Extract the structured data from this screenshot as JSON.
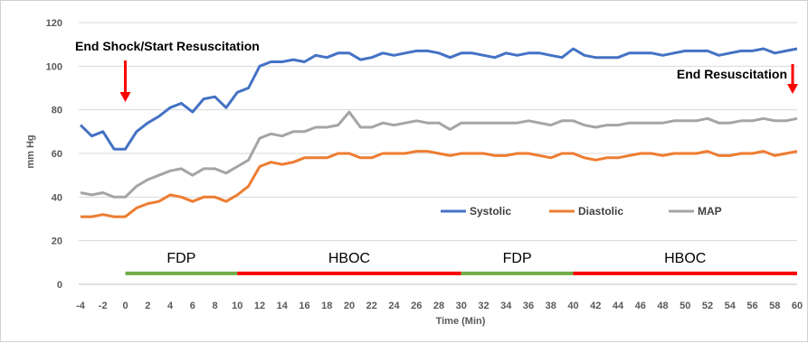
{
  "chart_data": {
    "type": "line",
    "title": "",
    "xlabel": "Time (Min)",
    "ylabel": "mm Hg",
    "xlim": [
      -4,
      60
    ],
    "ylim": [
      0,
      120
    ],
    "x_ticks": [
      -4,
      -2,
      0,
      2,
      4,
      6,
      8,
      10,
      12,
      14,
      16,
      18,
      20,
      22,
      24,
      26,
      28,
      30,
      32,
      34,
      36,
      38,
      40,
      42,
      44,
      46,
      48,
      50,
      52,
      54,
      56,
      58,
      60
    ],
    "y_ticks": [
      0,
      20,
      40,
      60,
      80,
      100,
      120
    ],
    "grid": "horizontal",
    "legend_position": "right",
    "x": [
      -4,
      -3,
      -2,
      -1,
      0,
      1,
      2,
      3,
      4,
      5,
      6,
      7,
      8,
      9,
      10,
      11,
      12,
      13,
      14,
      15,
      16,
      17,
      18,
      19,
      20,
      21,
      22,
      23,
      24,
      25,
      26,
      27,
      28,
      29,
      30,
      31,
      32,
      33,
      34,
      35,
      36,
      37,
      38,
      39,
      40,
      41,
      42,
      43,
      44,
      45,
      46,
      47,
      48,
      49,
      50,
      51,
      52,
      53,
      54,
      55,
      56,
      57,
      58,
      59,
      60
    ],
    "series": [
      {
        "name": "Systolic",
        "color": "#4472C4",
        "values": [
          73,
          68,
          70,
          62,
          62,
          70,
          74,
          77,
          81,
          83,
          79,
          85,
          86,
          81,
          88,
          90,
          100,
          102,
          102,
          103,
          102,
          105,
          104,
          106,
          106,
          103,
          104,
          106,
          105,
          106,
          107,
          107,
          106,
          104,
          106,
          106,
          105,
          104,
          106,
          105,
          106,
          106,
          105,
          104,
          108,
          105,
          104,
          104,
          104,
          106,
          106,
          106,
          105,
          106,
          107,
          107,
          107,
          105,
          106,
          107,
          107,
          108,
          106,
          107,
          108
        ]
      },
      {
        "name": "Diastolic",
        "color": "#ED7D31",
        "values": [
          31,
          31,
          32,
          31,
          31,
          35,
          37,
          38,
          41,
          40,
          38,
          40,
          40,
          38,
          41,
          45,
          54,
          56,
          55,
          56,
          58,
          58,
          58,
          60,
          60,
          58,
          58,
          60,
          60,
          60,
          61,
          61,
          60,
          59,
          60,
          60,
          60,
          59,
          59,
          60,
          60,
          59,
          58,
          60,
          60,
          58,
          57,
          58,
          58,
          59,
          60,
          60,
          59,
          60,
          60,
          60,
          61,
          59,
          59,
          60,
          60,
          61,
          59,
          60,
          61
        ]
      },
      {
        "name": "MAP",
        "color": "#A5A5A5",
        "values": [
          42,
          41,
          42,
          40,
          40,
          45,
          48,
          50,
          52,
          53,
          50,
          53,
          53,
          51,
          54,
          57,
          67,
          69,
          68,
          70,
          70,
          72,
          72,
          73,
          79,
          72,
          72,
          74,
          73,
          74,
          75,
          74,
          74,
          71,
          74,
          74,
          74,
          74,
          74,
          74,
          75,
          74,
          73,
          75,
          75,
          73,
          72,
          73,
          73,
          74,
          74,
          74,
          74,
          75,
          75,
          75,
          76,
          74,
          74,
          75,
          75,
          76,
          75,
          75,
          76
        ]
      }
    ],
    "phases": [
      {
        "label": "FDP",
        "start": 0,
        "end": 10,
        "color": "#70AD47"
      },
      {
        "label": "HBOC",
        "start": 10,
        "end": 30,
        "color": "#FF0000"
      },
      {
        "label": "FDP",
        "start": 30,
        "end": 40,
        "color": "#70AD47"
      },
      {
        "label": "HBOC",
        "start": 40,
        "end": 60,
        "color": "#FF0000"
      }
    ],
    "phase_line_y": 5,
    "annotations": [
      {
        "text": "End Shock/Start Resuscitation",
        "x": 0
      },
      {
        "text": "End Resuscitation",
        "x": 60
      }
    ],
    "annotation_arrow_color": "#FF0000"
  }
}
